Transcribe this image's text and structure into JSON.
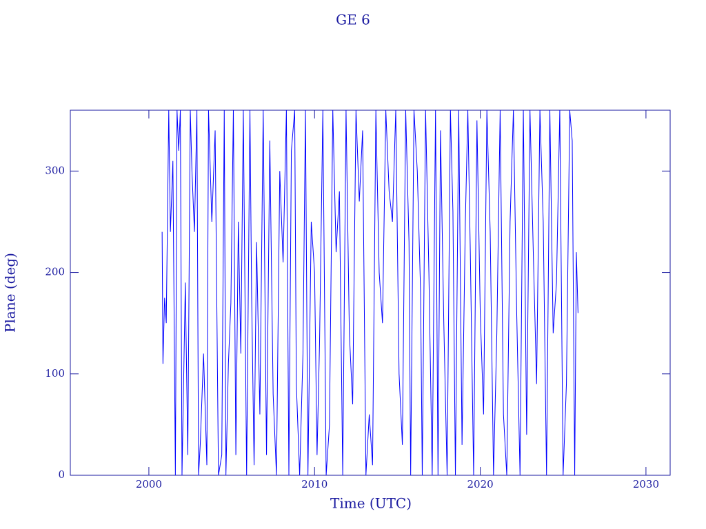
{
  "chart_data": {
    "type": "line",
    "title": "GE 6",
    "x_label": "Time (UTC)",
    "y_label": "Plane (deg)",
    "x": [
      2000.8,
      2000.85,
      2000.95,
      2001.05,
      2001.2,
      2001.3,
      2001.45,
      2001.6,
      2001.7,
      2001.8,
      2001.9,
      2002.0,
      2002.2,
      2002.35,
      2002.5,
      2002.6,
      2002.75,
      2002.9,
      2003.0,
      2003.1,
      2003.3,
      2003.5,
      2003.6,
      2003.8,
      2004.0,
      2004.2,
      2004.4,
      2004.55,
      2004.65,
      2004.8,
      2004.95,
      2005.1,
      2005.25,
      2005.4,
      2005.55,
      2005.7,
      2005.9,
      2006.1,
      2006.2,
      2006.35,
      2006.5,
      2006.7,
      2006.9,
      2007.1,
      2007.3,
      2007.5,
      2007.7,
      2007.9,
      2008.1,
      2008.3,
      2008.45,
      2008.6,
      2008.8,
      2008.9,
      2009.1,
      2009.3,
      2009.45,
      2009.6,
      2009.8,
      2010.0,
      2010.15,
      2010.3,
      2010.5,
      2010.7,
      2010.9,
      2011.1,
      2011.3,
      2011.5,
      2011.7,
      2011.9,
      2012.1,
      2012.3,
      2012.5,
      2012.7,
      2012.9,
      2013.1,
      2013.3,
      2013.5,
      2013.7,
      2013.9,
      2014.1,
      2014.3,
      2014.5,
      2014.7,
      2014.9,
      2015.1,
      2015.3,
      2015.5,
      2015.7,
      2015.8,
      2016.0,
      2016.2,
      2016.4,
      2016.5,
      2016.7,
      2016.9,
      2017.1,
      2017.3,
      2017.45,
      2017.6,
      2017.8,
      2018.0,
      2018.2,
      2018.35,
      2018.5,
      2018.7,
      2018.9,
      2019.1,
      2019.25,
      2019.4,
      2019.6,
      2019.8,
      2020.0,
      2020.2,
      2020.4,
      2020.6,
      2020.8,
      2021.0,
      2021.2,
      2021.4,
      2021.6,
      2021.8,
      2022.0,
      2022.2,
      2022.4,
      2022.6,
      2022.8,
      2023.0,
      2023.2,
      2023.4,
      2023.6,
      2023.8,
      2024.0,
      2024.2,
      2024.4,
      2024.6,
      2024.8,
      2025.0,
      2025.2,
      2025.4,
      2025.55,
      2025.7,
      2025.8,
      2025.9
    ],
    "series": [
      {
        "color": "#0000ff",
        "values": [
          240,
          110,
          175,
          150,
          360,
          240,
          310,
          0,
          360,
          320,
          360,
          0,
          190,
          20,
          360,
          300,
          240,
          360,
          0,
          30,
          120,
          10,
          360,
          250,
          340,
          0,
          20,
          360,
          0,
          110,
          170,
          360,
          20,
          250,
          120,
          360,
          0,
          360,
          180,
          10,
          230,
          60,
          360,
          20,
          330,
          80,
          0,
          300,
          210,
          360,
          0,
          320,
          360,
          90,
          0,
          120,
          360,
          0,
          250,
          200,
          20,
          130,
          360,
          0,
          50,
          360,
          220,
          280,
          0,
          360,
          140,
          70,
          360,
          270,
          340,
          0,
          60,
          10,
          360,
          200,
          150,
          360,
          280,
          250,
          360,
          100,
          30,
          360,
          230,
          0,
          360,
          300,
          180,
          0,
          360,
          200,
          0,
          360,
          0,
          340,
          150,
          0,
          360,
          260,
          0,
          360,
          30,
          250,
          360,
          220,
          0,
          350,
          160,
          60,
          360,
          240,
          0,
          140,
          360,
          60,
          0,
          250,
          360,
          160,
          0,
          360,
          40,
          360,
          220,
          90,
          360,
          250,
          0,
          360,
          140,
          190,
          360,
          0,
          90,
          360,
          330,
          0,
          220,
          160
        ]
      }
    ],
    "xlim": [
      1995.26,
      2031.46
    ],
    "ylim": [
      0,
      360
    ],
    "xticks": [
      2000,
      2010,
      2020,
      2030
    ],
    "yticks": [
      0,
      100,
      200,
      300
    ]
  }
}
